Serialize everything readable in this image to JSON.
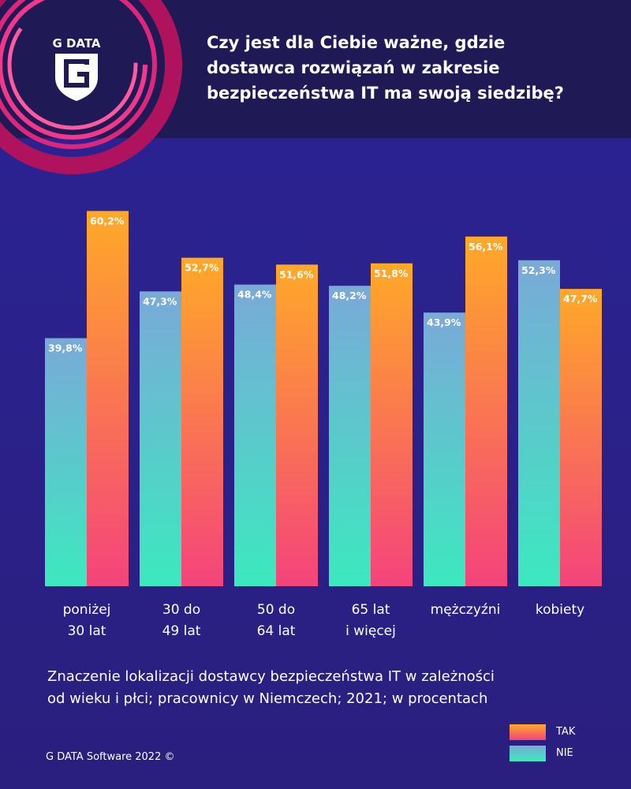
{
  "chart_data": {
    "type": "bar",
    "logo": "G DATA",
    "title": "Czy jest dla Ciebie ważne, gdzie\ndostawca rozwiązań w zakresie\nbezpieczeństwa IT ma swoją siedzibę?",
    "categories": [
      "poniżej\n30 lat",
      "30 do\n49 lat",
      "50 do\n64 lat",
      "65 lat\ni więcej",
      "mężczyźni",
      "kobiety"
    ],
    "series": [
      {
        "name": "TAK",
        "color": [
          "#ffa928",
          "#f4437c"
        ],
        "values": [
          60.2,
          52.7,
          51.6,
          51.8,
          56.1,
          47.7
        ],
        "value_labels": [
          "60,2%",
          "52,7%",
          "51,6%",
          "51,8%",
          "56,1%",
          "47,7%"
        ]
      },
      {
        "name": "NIE",
        "color": [
          "#7aa9d8",
          "#3ce9bf"
        ],
        "values": [
          39.8,
          47.3,
          48.4,
          48.2,
          43.9,
          52.3
        ],
        "value_labels": [
          "39,8%",
          "47,3%",
          "48,4%",
          "48,2%",
          "43,9%",
          "52,3%"
        ]
      }
    ],
    "subtitle": "Znaczenie lokalizacji dostawcy bezpieczeństwa IT w zależności\nod wieku i płci; pracownicy w Niemczech; 2021; w procentach",
    "footer": "G DATA Software 2022 ©"
  }
}
